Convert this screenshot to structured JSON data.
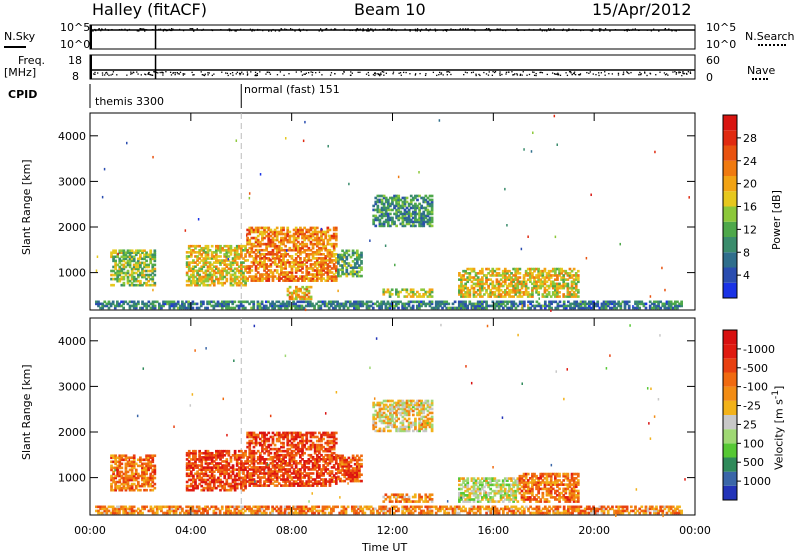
{
  "header": {
    "station": "Halley (fitACF)",
    "beam": "Beam 10",
    "date": "15/Apr/2012"
  },
  "top_panels": {
    "nsky_label": "N.Sky",
    "nsky_ticks": [
      "10^5",
      "10^0"
    ],
    "nsearch_label": "N.Search",
    "nsearch_ticks": [
      "10^5",
      "10^0"
    ],
    "freq_label": "Freq.",
    "freq_unit": "[MHz]",
    "freq_ticks": [
      "18",
      "8"
    ],
    "nave_label": "Nave",
    "nave_ticks": [
      "60",
      "0"
    ],
    "cpid_label": "CPID",
    "cpid_segments": [
      {
        "name": "themis 3300",
        "start_h": 0,
        "end_h": 6
      },
      {
        "name": "normal (fast) 151",
        "start_h": 6,
        "end_h": 24
      }
    ]
  },
  "chart_data": [
    {
      "type": "heatmap",
      "title": "",
      "xlabel": "",
      "ylabel": "Slant Range [km]",
      "x_ticks": [
        "00:00",
        "04:00",
        "08:00",
        "12:00",
        "16:00",
        "20:00",
        "00:00"
      ],
      "xlim_hours": [
        0,
        24
      ],
      "y_ticks": [
        "1000",
        "2000",
        "3000",
        "4000"
      ],
      "ylim_km": [
        180,
        4500
      ],
      "colorbar": {
        "label": "Power [dB]",
        "ticks": [
          "4",
          "8",
          "12",
          "16",
          "20",
          "24",
          "28"
        ],
        "colors": [
          "#1a33e6",
          "#2a4db0",
          "#2f6e8c",
          "#3a8c6c",
          "#4ea84a",
          "#8cc83a",
          "#e6c81e",
          "#f2a314",
          "#f07a10",
          "#e8520f",
          "#e02a10",
          "#d81410"
        ]
      },
      "echo_regions": [
        {
          "h0": 0.8,
          "h1": 2.6,
          "r0": 700,
          "r1": 1500,
          "level": 0.45
        },
        {
          "h0": 3.8,
          "h1": 6.2,
          "r0": 700,
          "r1": 1600,
          "level": 0.55
        },
        {
          "h0": 6.2,
          "h1": 9.8,
          "r0": 800,
          "r1": 2000,
          "level": 0.7
        },
        {
          "h0": 9.8,
          "h1": 10.8,
          "r0": 900,
          "r1": 1500,
          "level": 0.35
        },
        {
          "h0": 7.8,
          "h1": 8.8,
          "r0": 400,
          "r1": 700,
          "level": 0.6
        },
        {
          "h0": 11.2,
          "h1": 13.6,
          "r0": 2000,
          "r1": 2700,
          "level": 0.3
        },
        {
          "h0": 11.6,
          "h1": 13.6,
          "r0": 450,
          "r1": 650,
          "level": 0.5
        },
        {
          "h0": 14.6,
          "h1": 19.4,
          "r0": 450,
          "r1": 1100,
          "level": 0.55
        },
        {
          "h0": 0.2,
          "h1": 23.5,
          "r0": 200,
          "r1": 380,
          "level": 0.25
        }
      ]
    },
    {
      "type": "heatmap",
      "title": "",
      "xlabel": "Time UT",
      "ylabel": "Slant Range [km]",
      "x_ticks": [
        "00:00",
        "04:00",
        "08:00",
        "12:00",
        "16:00",
        "20:00",
        "00:00"
      ],
      "xlim_hours": [
        0,
        24
      ],
      "y_ticks": [
        "1000",
        "2000",
        "3000",
        "4000"
      ],
      "ylim_km": [
        180,
        4500
      ],
      "colorbar": {
        "label": "Velocity [m s^-1]",
        "ticks": [
          "1000",
          "500",
          "100",
          "25",
          "-25",
          "-100",
          "-500",
          "-1000"
        ],
        "colors": [
          "#2233b8",
          "#3a66a8",
          "#2f8a5a",
          "#56c834",
          "#9fd874",
          "#c8c8c8",
          "#f2b21a",
          "#f28c14",
          "#f06a10",
          "#e84010",
          "#e01a10",
          "#d81010"
        ]
      },
      "echo_regions": [
        {
          "h0": 0.8,
          "h1": 2.6,
          "r0": 700,
          "r1": 1500,
          "level": 0.7
        },
        {
          "h0": 3.8,
          "h1": 6.2,
          "r0": 700,
          "r1": 1600,
          "level": 0.8
        },
        {
          "h0": 6.2,
          "h1": 9.8,
          "r0": 800,
          "r1": 2000,
          "level": 0.8
        },
        {
          "h0": 9.8,
          "h1": 10.8,
          "r0": 900,
          "r1": 1500,
          "level": 0.75
        },
        {
          "h0": 11.6,
          "h1": 13.6,
          "r0": 450,
          "r1": 650,
          "level": 0.65
        },
        {
          "h0": 14.6,
          "h1": 17.0,
          "r0": 450,
          "r1": 1000,
          "level": 0.42
        },
        {
          "h0": 17.0,
          "h1": 19.4,
          "r0": 450,
          "r1": 1100,
          "level": 0.7
        },
        {
          "h0": 11.2,
          "h1": 13.6,
          "r0": 2000,
          "r1": 2700,
          "level": 0.5
        },
        {
          "h0": 0.2,
          "h1": 23.5,
          "r0": 200,
          "r1": 380,
          "level": 0.65
        }
      ]
    }
  ]
}
